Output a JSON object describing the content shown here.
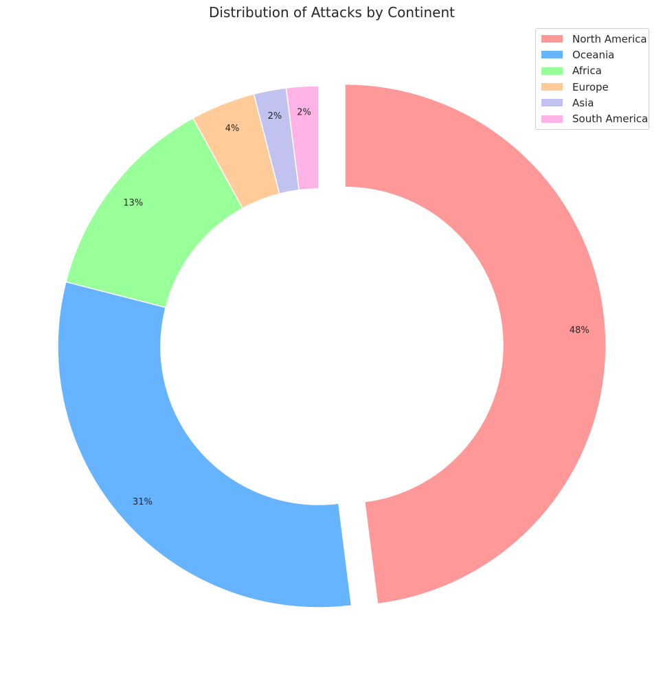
{
  "chart_data": {
    "type": "pie",
    "title": "Distribution of Attacks by Continent",
    "donut": true,
    "start_angle_deg": 90,
    "counterclockwise": false,
    "categories": [
      "North America",
      "Oceania",
      "Africa",
      "Europe",
      "Asia",
      "South America"
    ],
    "values": [
      48,
      31,
      13,
      4,
      2,
      2
    ],
    "labels": [
      "48%",
      "31%",
      "13%",
      "4%",
      "2%",
      "2%"
    ],
    "colors": [
      "#ff9999",
      "#66b3ff",
      "#99ff99",
      "#ffcc99",
      "#c2c2f0",
      "#ffb3e6"
    ],
    "exploded": [
      "North America"
    ],
    "legend_position": "top-right"
  }
}
